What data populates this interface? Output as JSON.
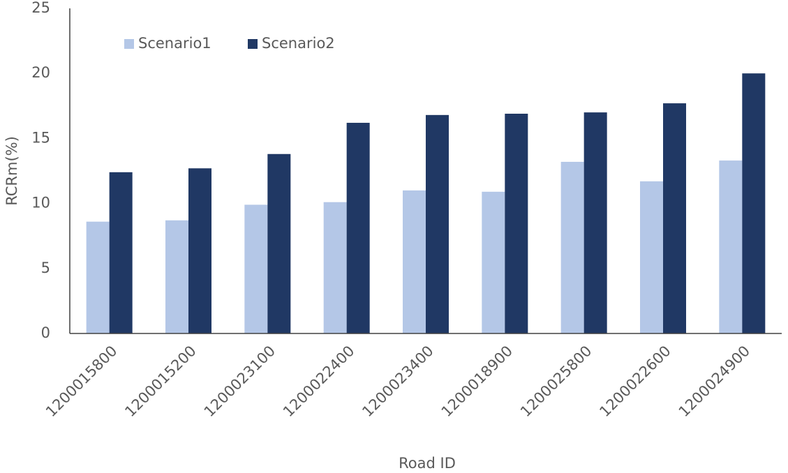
{
  "chart_data": {
    "type": "bar",
    "y_label": "RCRm(%)",
    "x_label": "Road ID",
    "categories": [
      "1200015800",
      "1200015200",
      "1200023100",
      "1200022400",
      "1200023400",
      "1200018900",
      "1200025800",
      "1200022600",
      "1200024900"
    ],
    "series": [
      {
        "name": "Scenario1",
        "color": "#b4c7e7",
        "values": [
          8.6,
          8.7,
          9.9,
          10.1,
          11.0,
          10.9,
          13.2,
          11.7,
          13.3
        ]
      },
      {
        "name": "Scenario2",
        "color": "#203864",
        "values": [
          12.4,
          12.7,
          13.8,
          16.2,
          16.8,
          16.9,
          17.0,
          17.7,
          20.0
        ]
      }
    ],
    "ylim": [
      0,
      25
    ],
    "yticks": [
      0,
      5,
      10,
      15,
      20,
      25
    ],
    "grid": false
  }
}
